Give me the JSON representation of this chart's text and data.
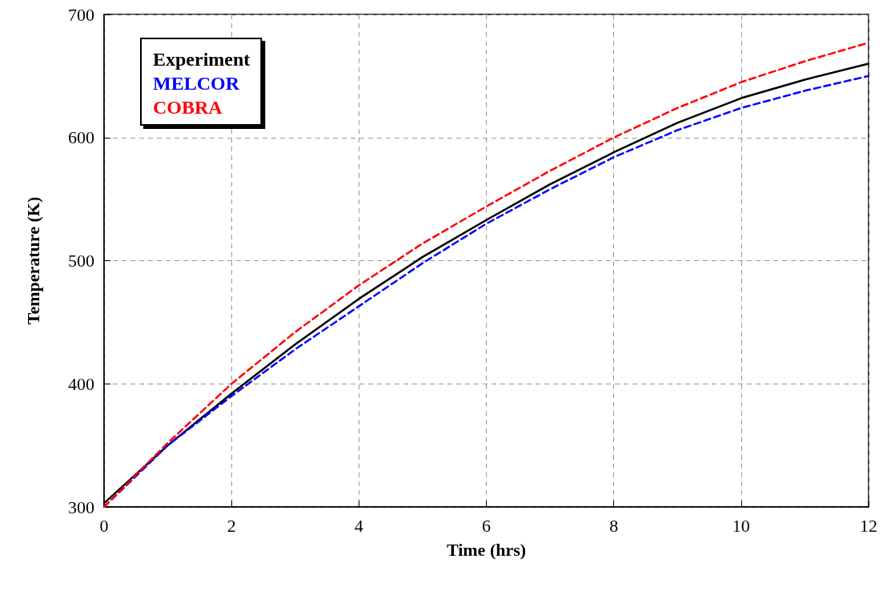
{
  "chart_data": {
    "type": "line",
    "xlabel": "Time (hrs)",
    "ylabel": "Temperature (K)",
    "x": [
      0,
      1,
      2,
      3,
      4,
      5,
      6,
      7,
      8,
      9,
      10,
      11,
      12
    ],
    "series": [
      {
        "name": "Experiment",
        "color": "#000000",
        "line_style": "solid",
        "values": [
          303,
          350,
          392,
          432,
          469,
          503,
          533,
          562,
          588,
          612,
          632,
          647,
          660
        ]
      },
      {
        "name": "MELCOR",
        "color": "#0000ff",
        "line_style": "dashed",
        "values": [
          300,
          350,
          390,
          428,
          463,
          498,
          530,
          558,
          584,
          606,
          624,
          638,
          650
        ]
      },
      {
        "name": "COBRA",
        "color": "#ff0000",
        "line_style": "dashed",
        "values": [
          300,
          352,
          400,
          442,
          480,
          514,
          544,
          573,
          600,
          624,
          645,
          662,
          677
        ]
      }
    ],
    "xlim": [
      0,
      12
    ],
    "xticks": [
      0,
      2,
      4,
      6,
      8,
      10,
      12
    ],
    "ylim": [
      300,
      700
    ],
    "yticks": [
      300,
      400,
      500,
      600,
      700
    ],
    "grid": true,
    "legend": "top left",
    "marker": "none"
  }
}
